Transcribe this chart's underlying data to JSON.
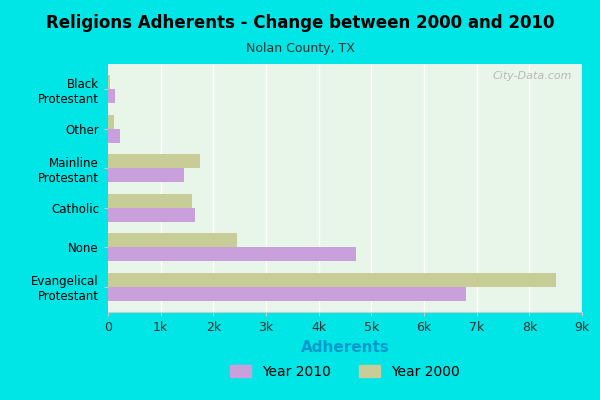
{
  "title": "Religions Adherents - Change between 2000 and 2010",
  "subtitle": "Nolan County, TX",
  "xlabel": "Adherents",
  "categories": [
    "Black\nProtestant",
    "Other",
    "Mainline\nProtestant",
    "Catholic",
    "None",
    "Evangelical\nProtestant"
  ],
  "year2010": [
    130,
    230,
    1450,
    1650,
    4700,
    6800
  ],
  "year2000": [
    30,
    120,
    1750,
    1600,
    2450,
    8500
  ],
  "color_2010": "#c9a0dc",
  "color_2000": "#c8cc96",
  "background_outer": "#00e5e5",
  "background_plot": "#e8f5e9",
  "xlim": [
    0,
    9000
  ],
  "xticks": [
    0,
    1000,
    2000,
    3000,
    4000,
    5000,
    6000,
    7000,
    8000,
    9000
  ],
  "xticklabels": [
    "0",
    "1k",
    "2k",
    "3k",
    "4k",
    "5k",
    "6k",
    "7k",
    "8k",
    "9k"
  ],
  "bar_height": 0.35,
  "legend_labels": [
    "Year 2010",
    "Year 2000"
  ],
  "watermark": "City-Data.com"
}
